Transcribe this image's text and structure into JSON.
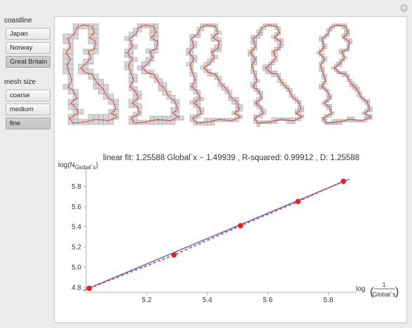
{
  "header": {
    "action_icon": "plus-circle-icon"
  },
  "sidebar": {
    "coastline_label": "coastline",
    "coastline_options": [
      "Japan",
      "Norway",
      "Great Britain"
    ],
    "coastline_selected": "Great Britain",
    "mesh_label": "mesh size",
    "mesh_options": [
      "coarse",
      "medium",
      "fine"
    ],
    "mesh_selected": "fine"
  },
  "main": {
    "fit_text": "linear fit: 1.25588 Global`x − 1.49939 , R-squared: 0.99912 , D: 1.25588",
    "map_count": 5
  },
  "chart_data": {
    "type": "scatter",
    "title": "",
    "ylabel_main": "log(N",
    "ylabel_sub": "Global`s",
    "ylabel_close": ")",
    "xlabel_prefix": "log",
    "xlabel_num": "1",
    "xlabel_den": "Global`s",
    "xlim": [
      5.0,
      5.88
    ],
    "ylim": [
      4.75,
      5.9
    ],
    "xticks": [
      5.2,
      5.4,
      5.6,
      5.8
    ],
    "yticks": [
      4.8,
      5.0,
      5.2,
      5.4,
      5.6,
      5.8
    ],
    "points": [
      {
        "x": 5.01,
        "y": 4.79
      },
      {
        "x": 5.29,
        "y": 5.12
      },
      {
        "x": 5.51,
        "y": 5.41
      },
      {
        "x": 5.7,
        "y": 5.65
      },
      {
        "x": 5.85,
        "y": 5.85
      }
    ],
    "fit_line": {
      "slope": 1.25588,
      "intercept": -1.49939,
      "color": "#5a78c2"
    },
    "dashed_line_color": "#e53b3b",
    "point_color": "#ee1c1c"
  }
}
